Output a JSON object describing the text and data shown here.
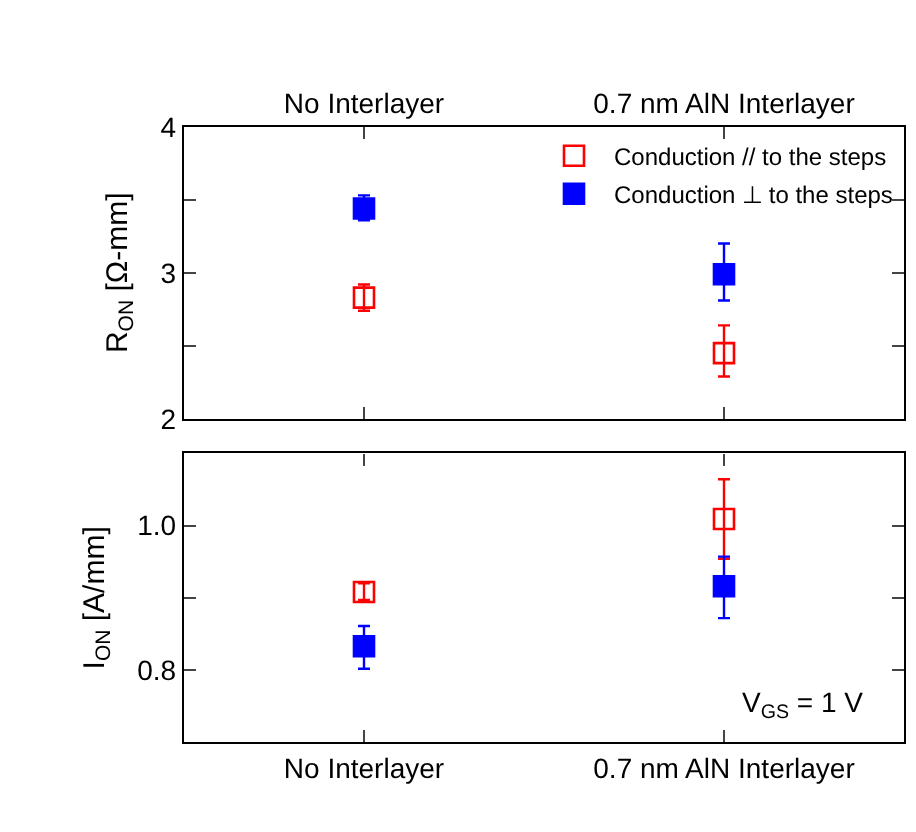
{
  "chart_data": [
    {
      "type": "scatter",
      "ylabel": "R$_{ON}$ [Ω-mm]",
      "categories": [
        "No Interlayer",
        "0.7 nm AlN Interlayer"
      ],
      "ylim": [
        2,
        4
      ],
      "yticks": [
        2,
        {
          "value": 2.5,
          "label": null
        },
        3,
        {
          "value": 3.5,
          "label": null
        },
        4
      ],
      "marker": "square",
      "legend": "top right",
      "series": [
        {
          "name": "Conduction // to the steps",
          "color": "#ff0000",
          "marker": "square-open",
          "values": [
            2.83,
            2.45
          ],
          "errors": [
            [
              2.74,
              2.92
            ],
            [
              2.29,
              2.64
            ]
          ]
        },
        {
          "name": "Conduction ⊥ to the steps",
          "color": "#0000ff",
          "values": [
            3.44,
            2.99
          ],
          "errors": [
            [
              3.36,
              3.53
            ],
            [
              2.81,
              3.2
            ]
          ]
        }
      ]
    },
    {
      "type": "scatter",
      "ylabel": "I$_{ON}$ [A/mm]",
      "categories": [
        "No Interlayer",
        "0.7 nm AlN Interlayer"
      ],
      "ylim": [
        0.7,
        1.1
      ],
      "yticks": [
        {
          "value": 0.8,
          "label": "0.8"
        },
        {
          "value": 0.9,
          "label": null
        },
        {
          "value": 1.0,
          "label": "1.0"
        }
      ],
      "marker": "square",
      "legend": false,
      "annotations": [
        "V$_{GS}$ = 1 V"
      ],
      "series": [
        {
          "color": "#ff0000",
          "marker": "square-open",
          "values": [
            0.908,
            1.009
          ],
          "errors": [
            [
              0.897,
              0.92
            ],
            [
              0.954,
              1.064
            ]
          ]
        },
        {
          "color": "#0000ff",
          "values": [
            0.833,
            0.916
          ],
          "errors": [
            [
              0.802,
              0.861
            ],
            [
              0.872,
              0.957
            ]
          ]
        }
      ]
    }
  ]
}
